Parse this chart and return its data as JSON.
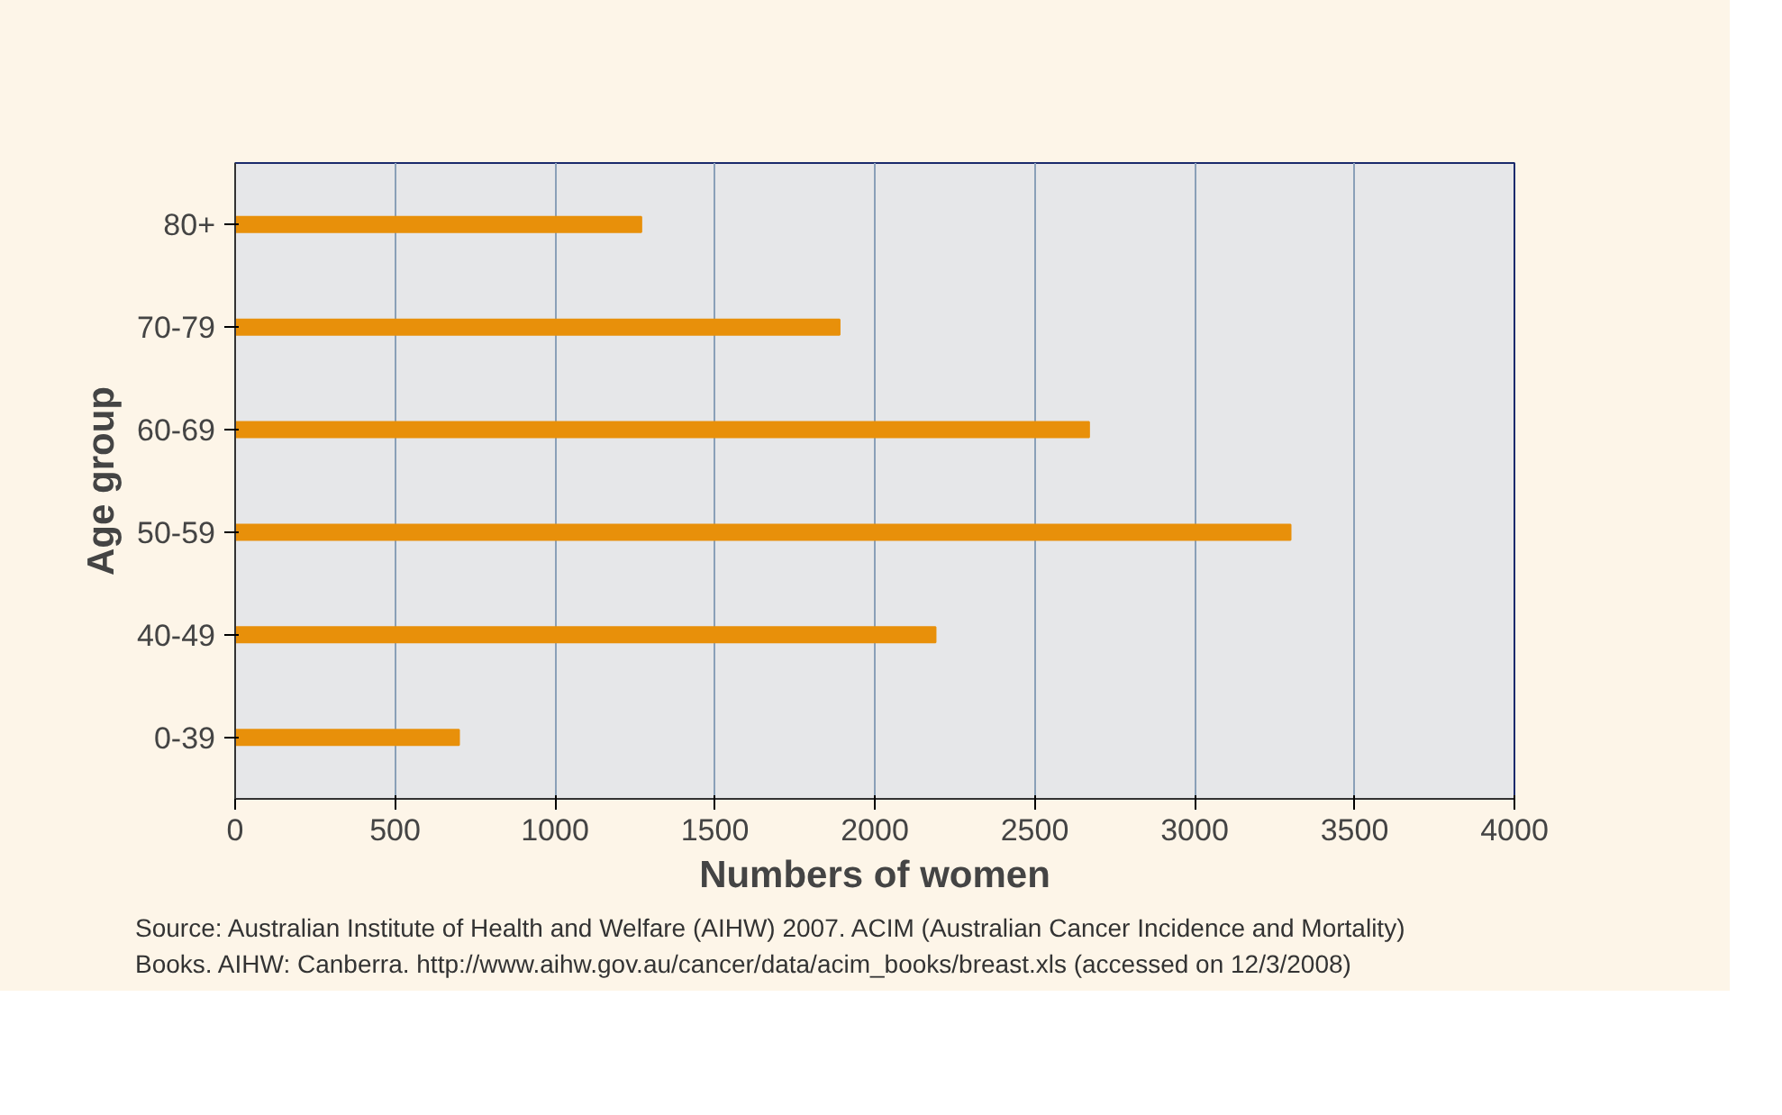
{
  "chart_data": {
    "type": "bar",
    "orientation": "horizontal",
    "xlabel": "Numbers of women",
    "ylabel": "Age group",
    "categories": [
      "80+",
      "70-79",
      "60-69",
      "50-59",
      "40-49",
      "0-39"
    ],
    "values": [
      1270,
      1890,
      2670,
      3300,
      2190,
      700
    ],
    "color": "#e8900a",
    "xlim": [
      0,
      4000
    ],
    "xticks": [
      0,
      500,
      1000,
      1500,
      2000,
      2500,
      3000,
      3500,
      4000
    ],
    "grid": "x",
    "annotations": [
      "Source: Australian Institute of Health and Welfare (AIHW) 2007. ACIM (Australian Cancer Incidence and Mortality) Books. AIHW: Canberra. http://www.aihw.gov.au/cancer/data/acim_books/breast.xls (accessed on 12/3/2008)"
    ]
  }
}
